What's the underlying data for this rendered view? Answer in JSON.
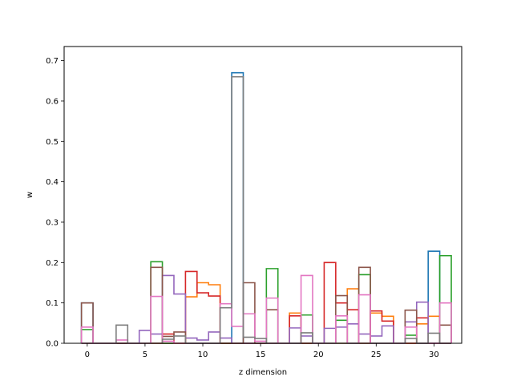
{
  "chart_data": {
    "type": "step",
    "xlabel": "z dimension",
    "ylabel": "w",
    "xlim": [
      -2,
      32.4
    ],
    "ylim": [
      0,
      0.735
    ],
    "xticks": [
      0,
      5,
      10,
      15,
      20,
      25,
      30
    ],
    "yticks": [
      0.0,
      0.1,
      0.2,
      0.3,
      0.4,
      0.5,
      0.6,
      0.7
    ],
    "ytick_labels": [
      "0.0",
      "0.1",
      "0.2",
      "0.3",
      "0.4",
      "0.5",
      "0.6",
      "0.7"
    ],
    "grid": false,
    "series": [
      {
        "color": "#1f77b4",
        "values": [
          0.1,
          0,
          0,
          0,
          0,
          0,
          0,
          0,
          0,
          0,
          0,
          0,
          0,
          0.67,
          0,
          0,
          0,
          0,
          0,
          0,
          0,
          0,
          0,
          0,
          0,
          0,
          0,
          0,
          0,
          0,
          0.228,
          0
        ]
      },
      {
        "color": "#ff7f0e",
        "values": [
          0,
          0,
          0,
          0,
          0,
          0,
          0,
          0,
          0,
          0.115,
          0.15,
          0.145,
          0,
          0,
          0,
          0,
          0,
          0,
          0.075,
          0,
          0,
          0,
          0,
          0.135,
          0,
          0.075,
          0.067,
          0,
          0,
          0.048,
          0.067,
          0
        ]
      },
      {
        "color": "#2ca02c",
        "values": [
          0.034,
          0,
          0,
          0,
          0,
          0,
          0.202,
          0,
          0,
          0,
          0,
          0,
          0,
          0,
          0,
          0,
          0.185,
          0,
          0,
          0.07,
          0,
          0,
          0.057,
          0,
          0.17,
          0,
          0,
          0,
          0.02,
          0,
          0,
          0.217
        ]
      },
      {
        "color": "#d62728",
        "values": [
          0,
          0,
          0,
          0,
          0,
          0,
          0,
          0.023,
          0,
          0.178,
          0.125,
          0.117,
          0,
          0,
          0,
          0,
          0,
          0,
          0.068,
          0,
          0,
          0.2,
          0.1,
          0.083,
          0,
          0.08,
          0.055,
          0,
          0,
          0.063,
          0,
          0
        ]
      },
      {
        "color": "#9467bd",
        "values": [
          0,
          0,
          0,
          0,
          0,
          0.032,
          0.023,
          0.168,
          0.122,
          0.013,
          0.008,
          0.028,
          0.013,
          0,
          0,
          0,
          0,
          0,
          0.038,
          0.018,
          0,
          0.037,
          0.04,
          0.048,
          0.023,
          0.018,
          0.043,
          0,
          0.053,
          0.102,
          0,
          0
        ]
      },
      {
        "color": "#8c564b",
        "values": [
          0.1,
          0,
          0,
          0,
          0,
          0,
          0.188,
          0.017,
          0.028,
          0,
          0,
          0,
          0,
          0,
          0.15,
          0,
          0.083,
          0,
          0,
          0,
          0,
          0,
          0.118,
          0,
          0.188,
          0,
          0,
          0,
          0.082,
          0,
          0,
          0.045
        ]
      },
      {
        "color": "#e377c2",
        "values": [
          0.04,
          0,
          0,
          0.008,
          0,
          0,
          0.116,
          0.005,
          0,
          0,
          0,
          0,
          0.098,
          0.042,
          0.073,
          0.005,
          0.112,
          0,
          0,
          0.168,
          0,
          0,
          0.068,
          0,
          0.12,
          0,
          0,
          0,
          0.04,
          0,
          0,
          0.1
        ]
      },
      {
        "color": "#7f7f7f",
        "values": [
          0,
          0,
          0,
          0.045,
          0,
          0,
          0,
          0.01,
          0.018,
          0,
          0,
          0,
          0.088,
          0.66,
          0.015,
          0.012,
          0,
          0,
          0,
          0.026,
          0,
          0,
          0,
          0,
          0,
          0,
          0,
          0,
          0.012,
          0,
          0.025,
          0
        ]
      }
    ]
  }
}
